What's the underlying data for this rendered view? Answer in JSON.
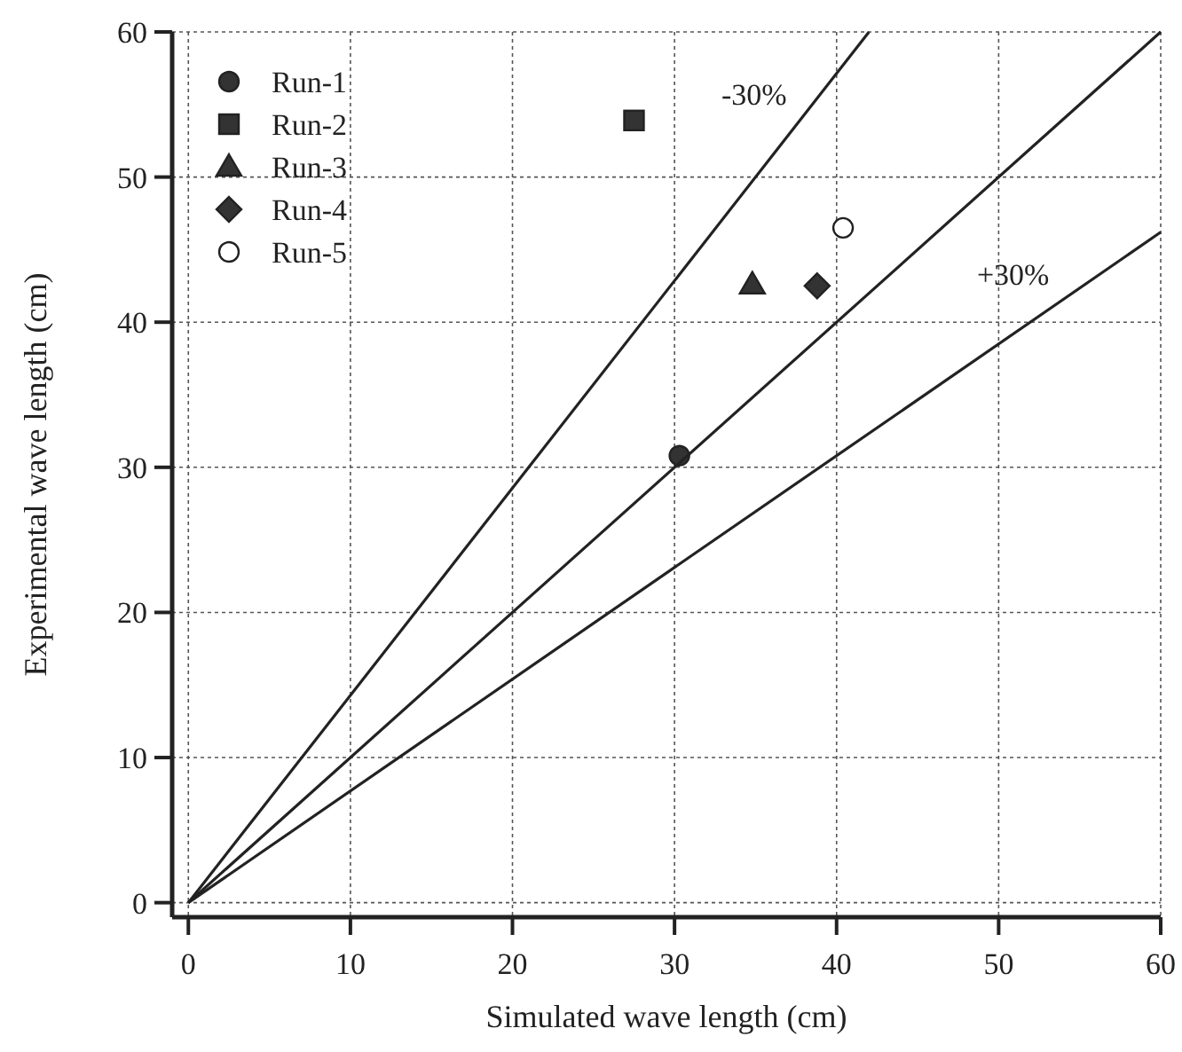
{
  "chart_data": {
    "type": "scatter",
    "xlabel": "Simulated wave length (cm)",
    "ylabel": "Experimental wave length (cm)",
    "xlim": [
      -1,
      60
    ],
    "ylim": [
      -1,
      60
    ],
    "xticks": [
      0,
      10,
      20,
      30,
      40,
      50,
      60
    ],
    "yticks": [
      0,
      10,
      20,
      30,
      40,
      50,
      60
    ],
    "grid": true,
    "legend": "top left",
    "series": [
      {
        "name": "Run-1",
        "marker": "circle",
        "color": "#333333",
        "x": [
          30.3
        ],
        "values": [
          30.8
        ]
      },
      {
        "name": "Run-2",
        "marker": "square",
        "color": "#333333",
        "x": [
          27.5
        ],
        "values": [
          53.9
        ]
      },
      {
        "name": "Run-3",
        "marker": "triangle",
        "color": "#333333",
        "x": [
          34.8
        ],
        "values": [
          42.6
        ]
      },
      {
        "name": "Run-4",
        "marker": "diamond",
        "color": "#333333",
        "x": [
          38.8
        ],
        "values": [
          42.5
        ]
      },
      {
        "name": "Run-5",
        "marker": "circle",
        "color": "#ffffff",
        "x": [
          40.4
        ],
        "values": [
          46.5
        ]
      },
      {
        "name": "-30%",
        "type": "line",
        "marker": "none",
        "color": "#222222",
        "line_style": "solid",
        "x": [
          0,
          42
        ],
        "values": [
          0,
          60
        ]
      },
      {
        "type": "line",
        "marker": "none",
        "color": "#222222",
        "line_style": "solid",
        "x": [
          0,
          60
        ],
        "values": [
          0,
          60
        ]
      },
      {
        "name": "+30%",
        "type": "line",
        "marker": "none",
        "color": "#222222",
        "line_style": "solid",
        "x": [
          0,
          60
        ],
        "values": [
          0,
          46.2
        ]
      }
    ]
  }
}
